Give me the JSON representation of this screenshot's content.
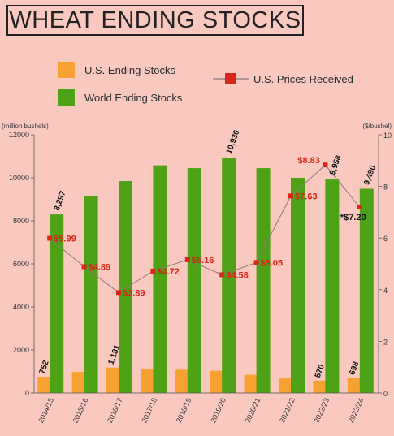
{
  "title": "WHEAT ENDING STOCKS",
  "legend": {
    "us_stocks": "U.S. Ending Stocks",
    "world_stocks": "World Ending Stocks",
    "us_prices": "U.S. Prices Received"
  },
  "colors": {
    "us_bar": "#f7a133",
    "world_bar": "#4da315",
    "price_marker": "#d8261b",
    "price_line": "#8a7a78",
    "background": "#f9c9c0"
  },
  "chart_data": {
    "type": "bar",
    "categories": [
      "2014/15",
      "2015/16",
      "2016/17",
      "2017/18",
      "2018/19",
      "2019/20",
      "2020/21",
      "2021/22",
      "2022/23",
      "2022/24"
    ],
    "series": [
      {
        "name": "U.S. Ending Stocks",
        "values": [
          752,
          976,
          1181,
          1099,
          1080,
          1028,
          845,
          674,
          570,
          698
        ]
      },
      {
        "name": "World Ending Stocks",
        "values": [
          8297,
          9150,
          9850,
          10580,
          10450,
          10936,
          10450,
          10000,
          9958,
          9490
        ]
      },
      {
        "name": "U.S. Prices Received",
        "axis": "right",
        "values": [
          5.99,
          4.89,
          3.89,
          4.72,
          5.16,
          4.58,
          5.05,
          7.63,
          8.83,
          7.2
        ]
      }
    ],
    "left_axis": {
      "label": "(million bushels)",
      "ylim": [
        0,
        12000
      ],
      "ticks": [
        0,
        2000,
        4000,
        6000,
        8000,
        10000,
        12000
      ]
    },
    "right_axis": {
      "label": "($/bushel)",
      "ylim": [
        0,
        10
      ],
      "ticks": [
        0,
        2,
        4,
        6,
        8,
        10
      ]
    },
    "us_labels": [
      {
        "index": 0,
        "text": "752"
      },
      {
        "index": 2,
        "text": "1,181"
      },
      {
        "index": 8,
        "text": "570"
      },
      {
        "index": 9,
        "text": "698"
      }
    ],
    "world_labels": [
      {
        "index": 0,
        "text": "8,297"
      },
      {
        "index": 5,
        "text": "10,936"
      },
      {
        "index": 8,
        "text": "9,958"
      },
      {
        "index": 9,
        "text": "9,490"
      }
    ],
    "price_labels": [
      "$5.99",
      "$4.89",
      "$3.89",
      "$4.72",
      "$5.16",
      "$4.58",
      "$5.05",
      "$7.63",
      "$8.83",
      "*$7.20"
    ],
    "legend_position": "top"
  }
}
